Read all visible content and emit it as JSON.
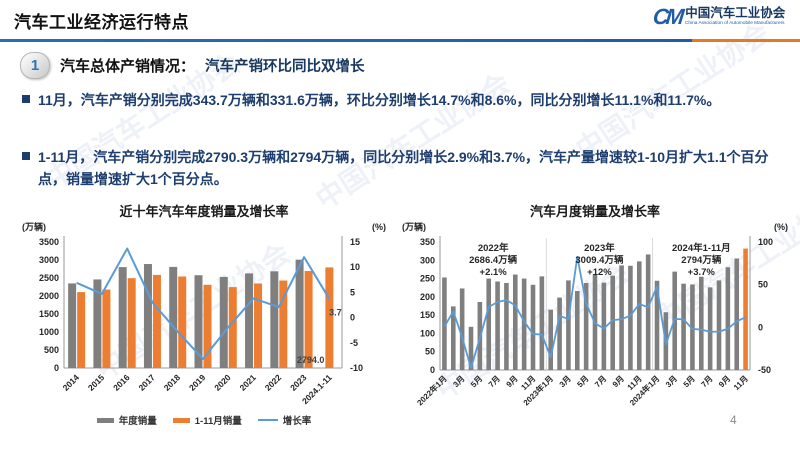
{
  "header": {
    "title": "汽车工业经济运行特点"
  },
  "logo": {
    "mark": "CM",
    "org_cn": "中国汽车工业协会",
    "org_en": "China Association of Automobile Manufacturers"
  },
  "section": {
    "badge": "1",
    "title_prefix": "汽车总体产销情况：",
    "title_highlight": "汽车产销环比同比双增长"
  },
  "bullets": [
    "11月，汽车产销分别完成343.7万辆和331.6万辆，环比分别增长14.7%和8.6%，同比分别增长11.1%和11.7%。",
    "1-11月，汽车产销分别完成2790.3万辆和2794万辆，同比分别增长2.9%和3.7%，汽车产量增速较1-10月扩大1.1个百分点，销量增速扩大1个百分点。"
  ],
  "watermark": {
    "text": "中国汽车工业协会"
  },
  "page_number": "4",
  "colors": {
    "bar_gray": "#7F7F7F",
    "bar_orange": "#ED7D31",
    "line_blue": "#5B9BD5",
    "text_navy": "#17375E",
    "rule_blue": "#2E75B6",
    "rule_orange": "#E87722"
  },
  "chart_data": [
    {
      "type": "bar",
      "title": "近十年汽车年度销量及增长率",
      "left_axis_label": "(万辆)",
      "right_axis_label": "(%)",
      "left_ticks": [
        0,
        500,
        1000,
        1500,
        2000,
        2500,
        3000,
        3500
      ],
      "right_ticks": [
        -10,
        -5,
        0,
        5,
        10,
        15
      ],
      "left_range": [
        0,
        3500
      ],
      "right_range": [
        -10,
        15
      ],
      "grid": false,
      "legend_position": "bottom",
      "categories": [
        "2014",
        "2015",
        "2016",
        "2017",
        "2018",
        "2019",
        "2020",
        "2021",
        "2022",
        "2023",
        "2024.1-11"
      ],
      "series": [
        {
          "name": "年度销量",
          "kind": "bar",
          "color": "#7F7F7F",
          "values": [
            2349,
            2460,
            2803,
            2888,
            2808,
            2577,
            2531,
            2628,
            2686,
            3009,
            null
          ]
        },
        {
          "name": "1-11月销量",
          "kind": "bar",
          "color": "#ED7D31",
          "values": [
            2108,
            2179,
            2495,
            2585,
            2542,
            2311,
            2247,
            2349,
            2430,
            2694,
            2794
          ]
        },
        {
          "name": "增长率",
          "kind": "line",
          "axis": "right",
          "color": "#5B9BD5",
          "values": [
            6.9,
            4.7,
            13.7,
            3.0,
            -2.8,
            -8.2,
            -1.9,
            3.8,
            2.1,
            12.0,
            3.7
          ]
        }
      ],
      "annotations": [
        {
          "text": "3.7",
          "role": "line-end"
        },
        {
          "text": "2794.0",
          "role": "last-bar"
        }
      ]
    },
    {
      "type": "bar",
      "title": "汽车月度销量及增长率",
      "left_axis_label": "(万辆)",
      "right_axis_label": "(%)",
      "left_ticks": [
        0,
        50,
        100,
        150,
        200,
        250,
        300,
        350
      ],
      "right_ticks": [
        -50,
        0,
        50,
        100
      ],
      "left_range": [
        0,
        350
      ],
      "right_range": [
        -50,
        100
      ],
      "grid": false,
      "x_tick_labels": [
        "2022年1月",
        "3月",
        "5月",
        "7月",
        "9月",
        "11月",
        "2023年1月",
        "3月",
        "5月",
        "7月",
        "9月",
        "11月",
        "2024年1月",
        "3月",
        "5月",
        "7月",
        "9月",
        "11月"
      ],
      "bar_series_name": "月度销量",
      "bar_color": "#7F7F7F",
      "last_bar_color": "#ED7D31",
      "bar_values": [
        253,
        174,
        223,
        118,
        186,
        250,
        242,
        238,
        261,
        250,
        233,
        256,
        165,
        198,
        245,
        216,
        238,
        262,
        239,
        258,
        286,
        285,
        297,
        316,
        244,
        158,
        269,
        236,
        234,
        255,
        226,
        245,
        281,
        305,
        332
      ],
      "line_series_name": "增长率",
      "line_color": "#5B9BD5",
      "line_values": [
        0.9,
        18.7,
        -11.7,
        -47.6,
        -12.6,
        23.8,
        29.7,
        32.1,
        25.7,
        6.9,
        -7.9,
        -8.4,
        -35.0,
        13.5,
        9.7,
        82.7,
        27.9,
        4.8,
        -1.4,
        8.4,
        9.5,
        13.8,
        27.4,
        23.5,
        47.9,
        -19.9,
        9.9,
        9.3,
        -1.9,
        -2.7,
        -5.2,
        -5.0,
        -1.7,
        7.0,
        11.7
      ],
      "year_groups": [
        {
          "label_lines": [
            "2022年",
            "2686.4万辆",
            "+2.1%"
          ],
          "start": 0,
          "end": 11
        },
        {
          "label_lines": [
            "2023年",
            "3009.4万辆",
            "+12%"
          ],
          "start": 12,
          "end": 23
        },
        {
          "label_lines": [
            "2024年1-11月",
            "2794万辆",
            "+3.7%"
          ],
          "start": 24,
          "end": 34
        }
      ]
    }
  ]
}
